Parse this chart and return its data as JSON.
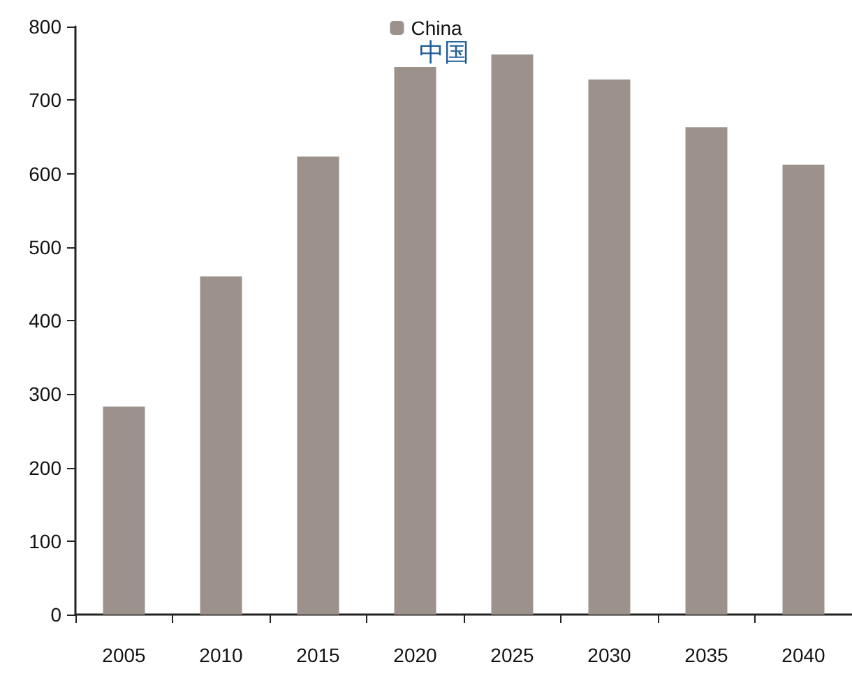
{
  "chart_data": {
    "type": "bar",
    "title": "中国",
    "categories": [
      "2005",
      "2010",
      "2015",
      "2020",
      "2025",
      "2030",
      "2035",
      "2040"
    ],
    "series": [
      {
        "name": "China",
        "color": "#9c928b",
        "values": [
          283,
          460,
          623,
          745,
          762,
          728,
          663,
          612
        ]
      }
    ],
    "ylim": [
      0,
      800
    ],
    "yticks": [
      0,
      100,
      200,
      300,
      400,
      500,
      600,
      700,
      800
    ],
    "grid": false,
    "legend": "top"
  }
}
